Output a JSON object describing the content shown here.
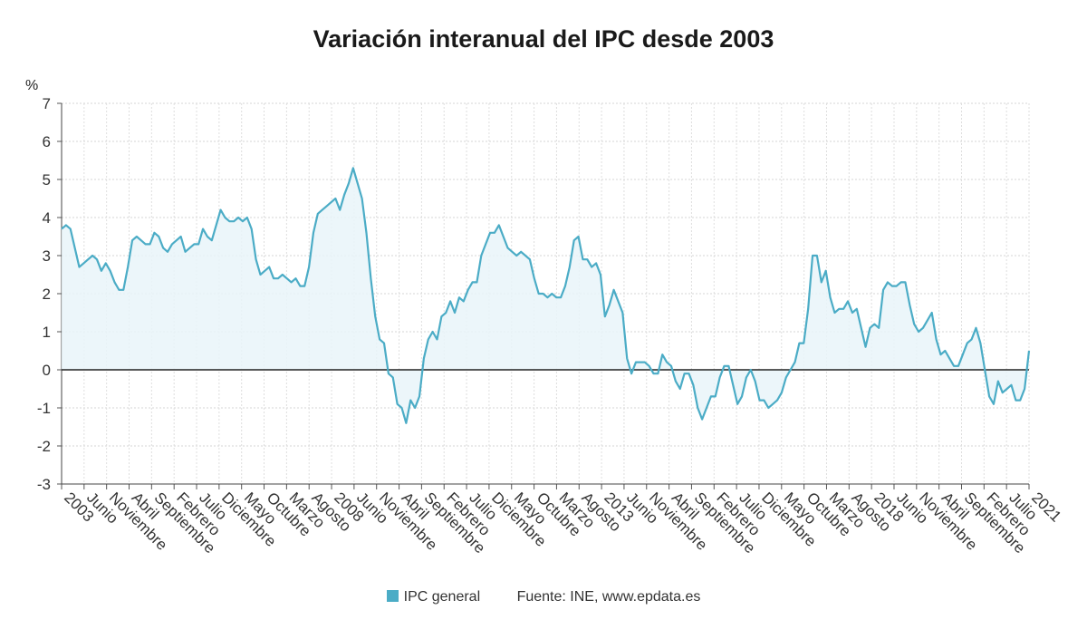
{
  "chart_data": {
    "type": "area",
    "title": "Variación interanual del IPC desde 2003",
    "ylabel": "%",
    "ylim": [
      -3,
      7
    ],
    "yticks": [
      -3,
      -2,
      -1,
      0,
      1,
      2,
      3,
      4,
      5,
      6,
      7
    ],
    "grid": true,
    "x_tick_labels": [
      "2003",
      "Junio",
      "Noviembre",
      "Abril",
      "Septiembre",
      "Febrero",
      "Julio",
      "Diciembre",
      "Mayo",
      "Octubre",
      "Marzo",
      "Agosto",
      "2008",
      "Junio",
      "Noviembre",
      "Abril",
      "Septiembre",
      "Febrero",
      "Julio",
      "Diciembre",
      "Mayo",
      "Octubre",
      "Marzo",
      "Agosto",
      "2013",
      "Junio",
      "Noviembre",
      "Abril",
      "Septiembre",
      "Febrero",
      "Julio",
      "Diciembre",
      "Mayo",
      "Octubre",
      "Marzo",
      "Agosto",
      "2018",
      "Junio",
      "Noviembre",
      "Abril",
      "Septiembre",
      "Febrero",
      "Julio",
      "2021"
    ],
    "x_start": "2003-01",
    "x_end": "2021-01",
    "legend_position": "bottom",
    "series": [
      {
        "name": "IPC general",
        "color": "#4bacc6",
        "values": [
          3.7,
          3.8,
          3.7,
          3.2,
          2.7,
          2.8,
          2.9,
          3.0,
          2.9,
          2.6,
          2.8,
          2.6,
          2.3,
          2.1,
          2.1,
          2.7,
          3.4,
          3.5,
          3.4,
          3.3,
          3.3,
          3.6,
          3.5,
          3.2,
          3.1,
          3.3,
          3.4,
          3.5,
          3.1,
          3.2,
          3.3,
          3.3,
          3.7,
          3.5,
          3.4,
          3.8,
          4.2,
          4.0,
          3.9,
          3.9,
          4.0,
          3.9,
          4.0,
          3.7,
          2.9,
          2.5,
          2.6,
          2.7,
          2.4,
          2.4,
          2.5,
          2.4,
          2.3,
          2.4,
          2.2,
          2.2,
          2.7,
          3.6,
          4.1,
          4.2,
          4.3,
          4.4,
          4.5,
          4.2,
          4.6,
          4.9,
          5.3,
          4.9,
          4.5,
          3.6,
          2.4,
          1.4,
          0.8,
          0.7,
          -0.1,
          -0.2,
          -0.9,
          -1.0,
          -1.4,
          -0.8,
          -1.0,
          -0.7,
          0.3,
          0.8,
          1.0,
          0.8,
          1.4,
          1.5,
          1.8,
          1.5,
          1.9,
          1.8,
          2.1,
          2.3,
          2.3,
          3.0,
          3.3,
          3.6,
          3.6,
          3.8,
          3.5,
          3.2,
          3.1,
          3.0,
          3.1,
          3.0,
          2.9,
          2.4,
          2.0,
          2.0,
          1.9,
          2.0,
          1.9,
          1.9,
          2.2,
          2.7,
          3.4,
          3.5,
          2.9,
          2.9,
          2.7,
          2.8,
          2.5,
          1.4,
          1.7,
          2.1,
          1.8,
          1.5,
          0.3,
          -0.1,
          0.2,
          0.2,
          0.2,
          0.1,
          -0.1,
          -0.1,
          0.4,
          0.2,
          0.1,
          -0.3,
          -0.5,
          -0.1,
          -0.1,
          -0.4,
          -1.0,
          -1.3,
          -1.0,
          -0.7,
          -0.7,
          -0.2,
          0.1,
          0.1,
          -0.4,
          -0.9,
          -0.7,
          -0.2,
          0.0,
          -0.3,
          -0.8,
          -0.8,
          -1.0,
          -0.9,
          -0.8,
          -0.6,
          -0.2,
          0.0,
          0.2,
          0.7,
          0.7,
          1.6,
          3.0,
          3.0,
          2.3,
          2.6,
          1.9,
          1.5,
          1.6,
          1.6,
          1.8,
          1.5,
          1.6,
          1.1,
          0.6,
          1.1,
          1.2,
          1.1,
          2.1,
          2.3,
          2.2,
          2.2,
          2.3,
          2.3,
          1.7,
          1.2,
          1.0,
          1.1,
          1.3,
          1.5,
          0.8,
          0.4,
          0.5,
          0.3,
          0.1,
          0.1,
          0.4,
          0.7,
          0.8,
          1.1,
          0.7,
          0.0,
          -0.7,
          -0.9,
          -0.3,
          -0.6,
          -0.5,
          -0.4,
          -0.8,
          -0.8,
          -0.5,
          0.5
        ]
      }
    ]
  },
  "legend": {
    "series_label": "IPC general",
    "source": "Fuente: INE, www.epdata.es"
  }
}
